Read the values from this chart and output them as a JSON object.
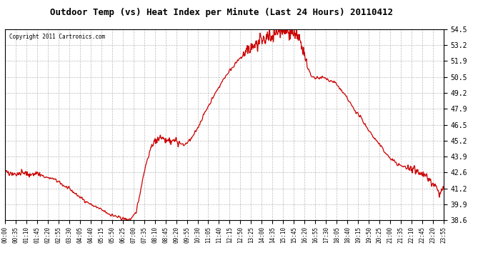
{
  "title": "Outdoor Temp (vs) Heat Index per Minute (Last 24 Hours) 20110412",
  "copyright": "Copyright 2011 Cartronics.com",
  "line_color": "#cc0000",
  "background_color": "#ffffff",
  "grid_color": "#aaaaaa",
  "ylim": [
    38.6,
    54.5
  ],
  "yticks": [
    38.6,
    39.9,
    41.2,
    42.6,
    43.9,
    45.2,
    46.5,
    47.9,
    49.2,
    50.5,
    51.9,
    53.2,
    54.5
  ],
  "xtick_labels": [
    "00:00",
    "00:35",
    "01:10",
    "01:45",
    "02:20",
    "02:55",
    "03:30",
    "04:05",
    "04:40",
    "05:15",
    "05:50",
    "06:25",
    "07:00",
    "07:35",
    "08:10",
    "08:45",
    "09:20",
    "09:55",
    "10:30",
    "11:05",
    "11:40",
    "12:15",
    "12:50",
    "13:25",
    "14:00",
    "14:35",
    "15:10",
    "15:45",
    "16:20",
    "16:55",
    "17:30",
    "18:05",
    "18:40",
    "19:15",
    "19:50",
    "20:25",
    "21:00",
    "21:35",
    "22:10",
    "22:45",
    "23:20",
    "23:55"
  ],
  "keypoints_x": [
    0,
    20,
    40,
    60,
    80,
    100,
    130,
    160,
    190,
    220,
    250,
    280,
    310,
    340,
    370,
    385,
    395,
    400,
    410,
    420,
    430,
    440,
    455,
    465,
    475,
    485,
    495,
    505,
    515,
    525,
    540,
    555,
    570,
    585,
    600,
    615,
    630,
    645,
    660,
    690,
    720,
    750,
    780,
    810,
    840,
    855,
    870,
    885,
    900,
    915,
    930,
    945,
    960,
    975,
    990,
    1005,
    1020,
    1040,
    1060,
    1080,
    1100,
    1120,
    1140,
    1170,
    1200,
    1230,
    1260,
    1290,
    1320,
    1350,
    1370,
    1390,
    1410,
    1425,
    1439
  ],
  "keypoints_y": [
    42.6,
    42.5,
    42.4,
    42.6,
    42.3,
    42.5,
    42.2,
    42.0,
    41.5,
    41.0,
    40.4,
    39.9,
    39.5,
    39.1,
    38.8,
    38.7,
    38.65,
    38.63,
    38.65,
    38.8,
    39.3,
    40.5,
    42.5,
    43.5,
    44.3,
    44.9,
    45.2,
    45.4,
    45.5,
    45.3,
    45.15,
    45.2,
    45.1,
    44.8,
    45.1,
    45.5,
    46.2,
    47.0,
    47.8,
    49.2,
    50.5,
    51.5,
    52.3,
    53.0,
    53.5,
    53.7,
    53.9,
    54.1,
    54.3,
    54.4,
    54.35,
    54.3,
    53.8,
    53.0,
    51.5,
    50.5,
    50.4,
    50.5,
    50.3,
    50.1,
    49.5,
    48.8,
    48.0,
    47.0,
    45.8,
    44.8,
    43.8,
    43.2,
    42.9,
    42.7,
    42.5,
    42.0,
    41.4,
    40.8,
    41.2
  ]
}
